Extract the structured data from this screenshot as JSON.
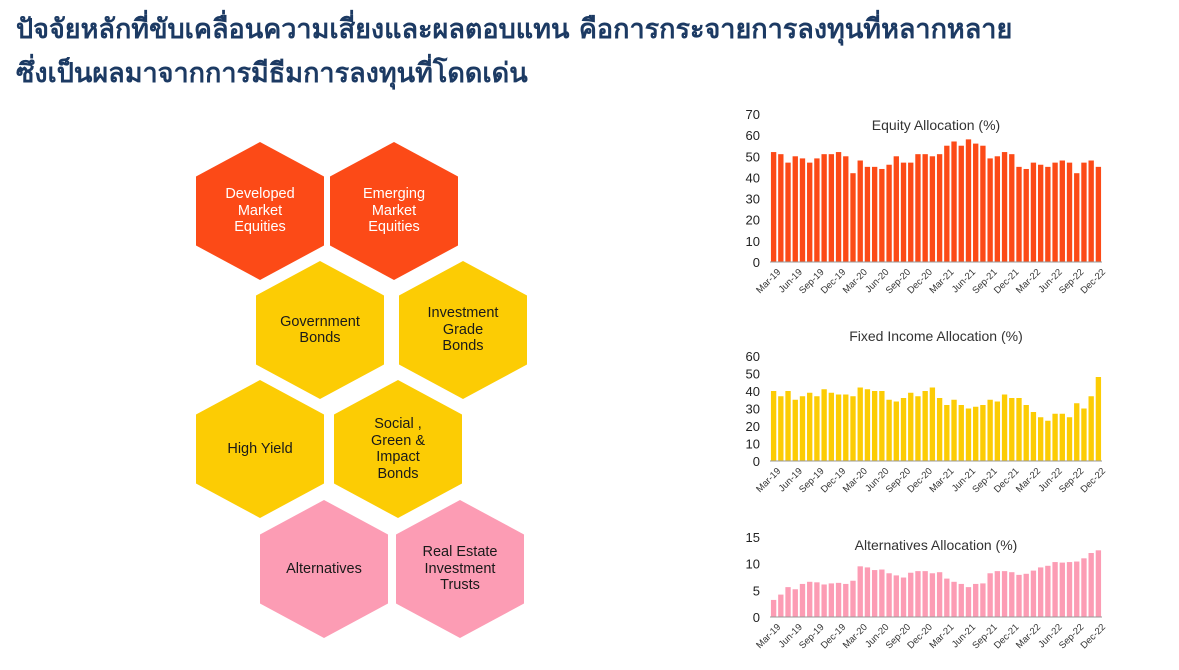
{
  "headline": {
    "line1": "ปัจจัยหลักที่ขับเคลื่อนความเสี่ยงและผลตอบแทน คือการกระจายการลงทุนที่หลากหลาย",
    "line2": "ซึ่งเป็นผลมาจากการมีธีมการลงทุนที่โดดเด่น"
  },
  "colors": {
    "title": "#1c3a63",
    "equity": "#fc4a17",
    "fixed_income": "#fccc04",
    "alternatives": "#fc9cb4"
  },
  "hexagons": [
    {
      "label": "Developed\nMarket\nEquities",
      "color": "#fc4a17",
      "text_color": "#ffffff"
    },
    {
      "label": "Emerging\nMarket\nEquities",
      "color": "#fc4a17",
      "text_color": "#ffffff"
    },
    {
      "label": "Government\nBonds",
      "color": "#fccc04",
      "text_color": "#1a1a1a"
    },
    {
      "label": "Investment\nGrade\nBonds",
      "color": "#fccc04",
      "text_color": "#1a1a1a"
    },
    {
      "label": "High Yield",
      "color": "#fccc04",
      "text_color": "#1a1a1a"
    },
    {
      "label": "Social ,\nGreen &\nImpact\nBonds",
      "color": "#fccc04",
      "text_color": "#1a1a1a"
    },
    {
      "label": "Alternatives",
      "color": "#fc9cb4",
      "text_color": "#1a1a1a"
    },
    {
      "label": "Real Estate\nInvestment\nTrusts",
      "color": "#fc9cb4",
      "text_color": "#1a1a1a"
    }
  ],
  "chart_data": [
    {
      "type": "bar",
      "title": "Equity Allocation (%)",
      "ylim": [
        0,
        70
      ],
      "yticks": [
        0,
        10,
        20,
        30,
        40,
        50,
        60,
        70
      ],
      "x_tick_labels": [
        "Mar-19",
        "Jun-19",
        "Sep-19",
        "Dec-19",
        "Mar-20",
        "Jun-20",
        "Sep-20",
        "Dec-20",
        "Mar-21",
        "Jun-21",
        "Sep-21",
        "Dec-21",
        "Mar-22",
        "Jun-22",
        "Sep-22",
        "Dec-22"
      ],
      "color": "#fc4a17",
      "values": [
        52,
        51,
        47,
        50,
        49,
        47,
        49,
        51,
        51,
        52,
        50,
        42,
        48,
        45,
        45,
        44,
        46,
        50,
        47,
        47,
        51,
        51,
        50,
        51,
        55,
        57,
        55,
        58,
        56,
        55,
        49,
        50,
        52,
        51,
        45,
        44,
        47,
        46,
        45,
        47,
        48,
        47,
        42,
        47,
        48,
        45
      ]
    },
    {
      "type": "bar",
      "title": "Fixed Income Allocation (%)",
      "ylim": [
        0,
        60
      ],
      "yticks": [
        0,
        10,
        20,
        30,
        40,
        50,
        60
      ],
      "x_tick_labels": [
        "Mar-19",
        "Jun-19",
        "Sep-19",
        "Dec-19",
        "Mar-20",
        "Jun-20",
        "Sep-20",
        "Dec-20",
        "Mar-21",
        "Jun-21",
        "Sep-21",
        "Dec-21",
        "Mar-22",
        "Jun-22",
        "Sep-22",
        "Dec-22"
      ],
      "color": "#fccc04",
      "values": [
        40,
        37,
        40,
        35,
        37,
        39,
        37,
        41,
        39,
        38,
        38,
        37,
        42,
        41,
        40,
        40,
        35,
        34,
        36,
        39,
        37,
        40,
        42,
        36,
        32,
        35,
        32,
        30,
        31,
        32,
        35,
        34,
        38,
        36,
        36,
        32,
        28,
        25,
        23,
        27,
        27,
        25,
        33,
        30,
        37,
        48
      ]
    },
    {
      "type": "bar",
      "title": "Alternatives Allocation (%)",
      "ylim": [
        0,
        15
      ],
      "yticks": [
        0,
        5,
        10,
        15
      ],
      "x_tick_labels": [
        "Mar-19",
        "Jun-19",
        "Sep-19",
        "Dec-19",
        "Mar-20",
        "Jun-20",
        "Sep-20",
        "Dec-20",
        "Mar-21",
        "Jun-21",
        "Sep-21",
        "Dec-21",
        "Mar-22",
        "Jun-22",
        "Sep-22",
        "Dec-22"
      ],
      "color": "#fc9cb4",
      "values": [
        3.2,
        4.2,
        5.6,
        5.2,
        6.2,
        6.6,
        6.5,
        6.1,
        6.3,
        6.4,
        6.2,
        6.8,
        9.5,
        9.3,
        8.8,
        8.9,
        8.2,
        7.8,
        7.4,
        8.3,
        8.6,
        8.6,
        8.2,
        8.4,
        7.2,
        6.6,
        6.2,
        5.6,
        6.2,
        6.3,
        8.2,
        8.6,
        8.6,
        8.4,
        7.9,
        8.1,
        8.7,
        9.3,
        9.6,
        10.3,
        10.2,
        10.3,
        10.4,
        11.0,
        12.0,
        12.5
      ]
    }
  ]
}
